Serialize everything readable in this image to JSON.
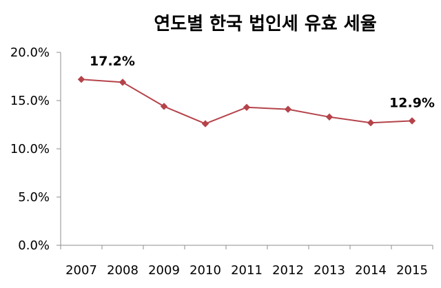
{
  "chart_data": {
    "type": "line",
    "title": "연도별 한국 법인세 유효 세율",
    "xlabel": "",
    "ylabel": "",
    "categories": [
      "2007",
      "2008",
      "2009",
      "2010",
      "2011",
      "2012",
      "2013",
      "2014",
      "2015"
    ],
    "series": [
      {
        "values": [
          17.2,
          16.9,
          14.4,
          12.6,
          14.3,
          14.1,
          13.3,
          12.7,
          12.9
        ],
        "color": "#B5434A"
      }
    ],
    "ylim": [
      0,
      20
    ],
    "yticks": [
      "0.0%",
      "5.0%",
      "10.0%",
      "15.0%",
      "20.0%"
    ],
    "data_labels": [
      {
        "text": "17.2%",
        "point_index": 0
      },
      {
        "text": "12.9%",
        "point_index": 8
      }
    ],
    "grid": false,
    "legend": "none"
  }
}
